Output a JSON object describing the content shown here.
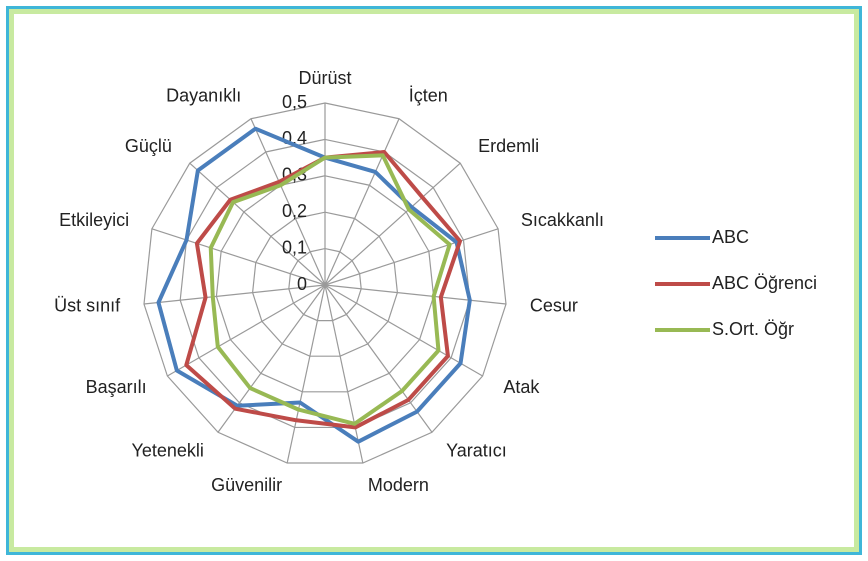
{
  "chart_data": {
    "type": "radar",
    "categories": [
      "Dürüst",
      "İçten",
      "Erdemli",
      "Sıcakkanlı",
      "Cesur",
      "Atak",
      "Yaratıcı",
      "Modern",
      "Güvenilir",
      "Yetenekli",
      "Başarılı",
      "Üst sınıf",
      "Etkileyici",
      "Güçlü",
      "Dayanıklı"
    ],
    "series": [
      {
        "name": "ABC",
        "color": "#4a7ebb",
        "values": [
          0.35,
          0.34,
          0.32,
          0.38,
          0.4,
          0.43,
          0.43,
          0.44,
          0.33,
          0.41,
          0.47,
          0.46,
          0.4,
          0.47,
          0.47
        ]
      },
      {
        "name": "ABC Öğrenci",
        "color": "#be4b48",
        "values": [
          0.35,
          0.4,
          0.36,
          0.39,
          0.32,
          0.39,
          0.39,
          0.4,
          0.38,
          0.42,
          0.44,
          0.33,
          0.37,
          0.35,
          0.31
        ]
      },
      {
        "name": "S.Ort. Öğr",
        "color": "#98b954",
        "values": [
          0.35,
          0.39,
          0.31,
          0.36,
          0.3,
          0.36,
          0.36,
          0.39,
          0.35,
          0.35,
          0.34,
          0.31,
          0.33,
          0.34,
          0.3
        ]
      }
    ],
    "ylim": [
      0,
      0.5
    ],
    "yticks": [
      0,
      {
        "value": 0.1,
        "label": "0,1"
      },
      {
        "value": 0.2,
        "label": "0,2"
      },
      {
        "value": 0.3,
        "label": "0,3"
      },
      {
        "value": 0.4,
        "label": "0,4"
      },
      {
        "value": 0.5,
        "label": "0,5"
      }
    ],
    "grid": true,
    "legend": "right"
  }
}
